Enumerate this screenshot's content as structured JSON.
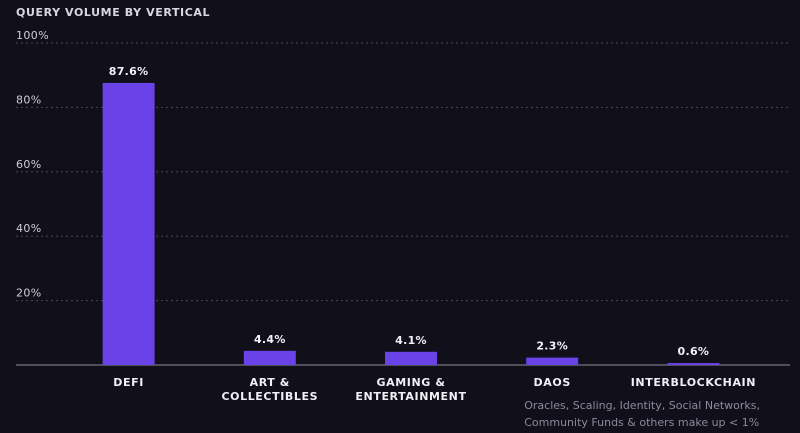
{
  "chart_data": {
    "type": "bar",
    "title": "QUERY VOLUME BY VERTICAL",
    "xlabel": "",
    "ylabel": "",
    "ylim": [
      0,
      100
    ],
    "y_ticks": [
      "20%",
      "40%",
      "60%",
      "80%",
      "100%"
    ],
    "categories": [
      [
        "DEFI"
      ],
      [
        "ART &",
        "COLLECTIBLES"
      ],
      [
        "GAMING &",
        "ENTERTAINMENT"
      ],
      [
        "DAOS"
      ],
      [
        "INTERBLOCKCHAIN"
      ]
    ],
    "values": [
      87.6,
      4.4,
      4.1,
      2.3,
      0.6
    ],
    "value_labels": [
      "87.6%",
      "4.4%",
      "4.1%",
      "2.3%",
      "0.6%"
    ],
    "grid": true,
    "bar_color": "#6a43e8",
    "footnote": [
      "Oracles, Scaling, Identity, Social Networks,",
      "Community Funds & others make up < 1%"
    ]
  }
}
